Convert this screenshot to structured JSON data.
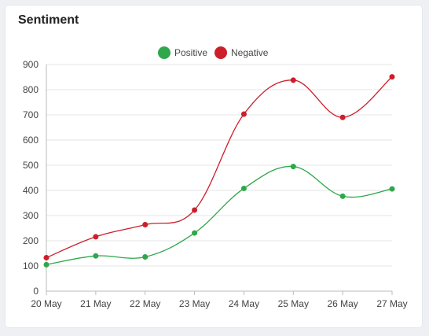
{
  "card": {
    "title": "Sentiment"
  },
  "chart_data": {
    "type": "line",
    "title": "Sentiment",
    "xlabel": "",
    "ylabel": "",
    "x": [
      "20 May",
      "21 May",
      "22 May",
      "23 May",
      "24 May",
      "25 May",
      "26 May",
      "27 May"
    ],
    "ylim": [
      0,
      900
    ],
    "yticks": [
      0,
      100,
      200,
      300,
      400,
      500,
      600,
      700,
      800,
      900
    ],
    "grid": true,
    "legend_position": "top-center",
    "smooth": true,
    "series": [
      {
        "name": "Positive",
        "color": "#2ea84a",
        "values": [
          105,
          140,
          136,
          231,
          408,
          495,
          377,
          406
        ]
      },
      {
        "name": "Negative",
        "color": "#cc1f2a",
        "values": [
          133,
          216,
          264,
          322,
          703,
          838,
          690,
          851
        ]
      }
    ]
  }
}
